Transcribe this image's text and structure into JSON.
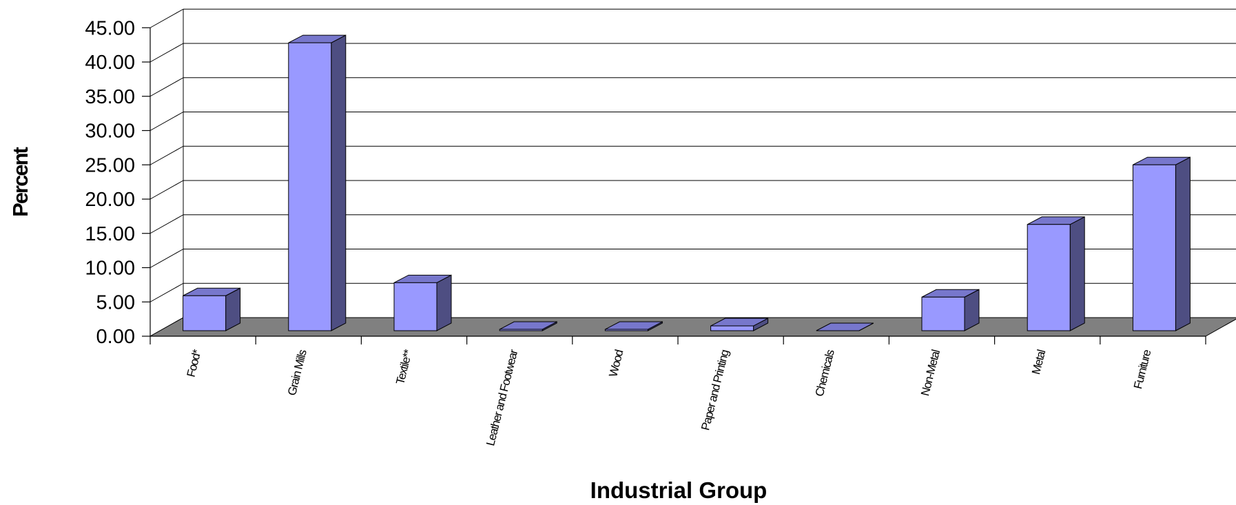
{
  "chart_data": {
    "type": "bar",
    "title": "",
    "xlabel": "Industrial Group",
    "ylabel": "Percent",
    "categories": [
      "Food*",
      "Grain Mills",
      "Textile**",
      "Leather and Footwear",
      "Wood",
      "Paper and Printing",
      "Chemicals",
      "Non-Metal",
      "Metal",
      "Furniture"
    ],
    "values": [
      5.1,
      42.0,
      7.0,
      0.2,
      0.2,
      0.7,
      0.0,
      4.9,
      15.5,
      24.2
    ],
    "ylim": [
      0,
      45
    ],
    "yticks": [
      "0.00",
      "5.00",
      "10.00",
      "15.00",
      "20.00",
      "25.00",
      "30.00",
      "35.00",
      "40.00",
      "45.00"
    ],
    "grid": true,
    "three_d": true,
    "legend": "none",
    "colors": {
      "bar_front": "#9999FF",
      "bar_side": "#4E4E82",
      "bar_top": "#7777CC",
      "floor": "#808080",
      "grid": "#000000"
    }
  }
}
